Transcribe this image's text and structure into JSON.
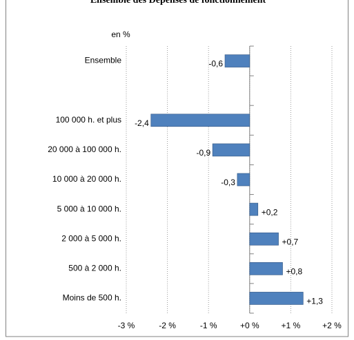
{
  "chart_data": {
    "type": "barh",
    "title": "Ensemble des Dépenses de fonctionnement",
    "subtitle": "en %",
    "categories": [
      "Ensemble",
      null,
      "100 000 h. et plus",
      "20 000 à 100 000 h.",
      "10 000 à 20 000 h.",
      "5 000 à 10 000 h.",
      "2 000 à 5 000 h.",
      "500 à 2 000 h.",
      "Moins de 500 h."
    ],
    "values": [
      -0.6,
      null,
      -2.4,
      -0.9,
      -0.3,
      0.2,
      0.7,
      0.8,
      1.3
    ],
    "value_labels": [
      "-0,6",
      null,
      "-2,4",
      "-0,9",
      "-0,3",
      "+0,2",
      "+0,7",
      "+0,8",
      "+1,3"
    ],
    "color": "#4f81bd",
    "xlim": [
      -3.3,
      2.2
    ],
    "xticks": [
      {
        "value": -3,
        "label": "-3 %"
      },
      {
        "value": -2,
        "label": "-2 %"
      },
      {
        "value": -1,
        "label": "-1 %"
      },
      {
        "value": 0,
        "label": "+0 %"
      },
      {
        "value": 1,
        "label": "+1 %"
      },
      {
        "value": 2,
        "label": "+2 %"
      }
    ],
    "grid": true
  }
}
